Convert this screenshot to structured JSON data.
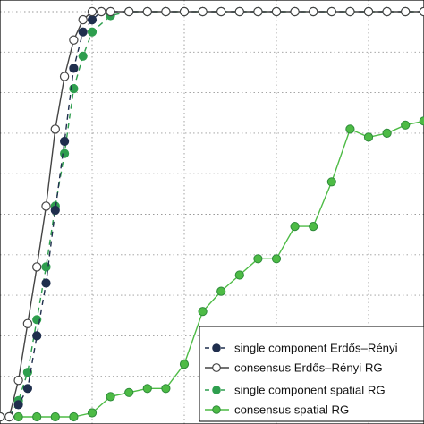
{
  "chart_data": {
    "type": "line",
    "title": "",
    "xlabel": "",
    "ylabel": "",
    "xlim": [
      0,
      23
    ],
    "ylim": [
      0,
      1.03
    ],
    "grid": true,
    "legend_position": "bottom-right",
    "series": [
      {
        "name": "single component Erdős–Rényi",
        "color": "#1f2e4d",
        "line": "dashed",
        "marker": "filled",
        "x": [
          0,
          0.5,
          1,
          1.5,
          2,
          2.5,
          3,
          3.5,
          4,
          4.5,
          5,
          5.5,
          6,
          7,
          8,
          9,
          10,
          11,
          12,
          13,
          14,
          15,
          16,
          17,
          18,
          19,
          20,
          21,
          22,
          23
        ],
        "y": [
          0.0,
          0.0,
          0.03,
          0.07,
          0.2,
          0.33,
          0.51,
          0.68,
          0.86,
          0.95,
          0.98,
          1.0,
          1.0,
          1.0,
          1.0,
          1.0,
          1.0,
          1.0,
          1.0,
          1.0,
          1.0,
          1.0,
          1.0,
          1.0,
          1.0,
          1.0,
          1.0,
          1.0,
          1.0,
          1.0
        ]
      },
      {
        "name": "consensus Erdős–Rényi RG",
        "color": "#444444",
        "line": "solid",
        "marker": "open",
        "x": [
          0,
          0.5,
          1,
          1.5,
          2,
          2.5,
          3,
          3.5,
          4,
          4.5,
          5,
          5.5,
          6,
          7,
          8,
          9,
          10,
          11,
          12,
          13,
          14,
          15,
          16,
          17,
          18,
          19,
          20,
          21,
          22,
          23
        ],
        "y": [
          0.0,
          0.0,
          0.09,
          0.23,
          0.37,
          0.52,
          0.71,
          0.84,
          0.93,
          0.98,
          1.0,
          1.0,
          1.0,
          1.0,
          1.0,
          1.0,
          1.0,
          1.0,
          1.0,
          1.0,
          1.0,
          1.0,
          1.0,
          1.0,
          1.0,
          1.0,
          1.0,
          1.0,
          1.0,
          1.0
        ]
      },
      {
        "name": "single component spatial RG",
        "color": "#2e9e4e",
        "line": "dashed",
        "marker": "filled",
        "x": [
          0,
          0.5,
          1,
          1.5,
          2,
          2.5,
          3,
          3.5,
          4,
          4.5,
          5,
          6,
          7,
          8,
          9,
          10,
          11,
          12,
          13,
          14,
          15,
          16,
          17,
          18,
          19,
          20,
          21,
          22,
          23
        ],
        "y": [
          0.0,
          0.0,
          0.04,
          0.11,
          0.24,
          0.37,
          0.52,
          0.65,
          0.81,
          0.89,
          0.95,
          0.99,
          1.0,
          1.0,
          1.0,
          1.0,
          1.0,
          1.0,
          1.0,
          1.0,
          1.0,
          1.0,
          1.0,
          1.0,
          1.0,
          1.0,
          1.0,
          1.0,
          1.0
        ]
      },
      {
        "name": "consensus spatial RG",
        "color": "#4dbb45",
        "line": "solid",
        "marker": "filled",
        "x": [
          0,
          1,
          2,
          3,
          4,
          5,
          6,
          7,
          8,
          9,
          10,
          11,
          12,
          13,
          14,
          15,
          16,
          17,
          18,
          19,
          20,
          21,
          22,
          23
        ],
        "y": [
          0.0,
          0.0,
          0.0,
          0.0,
          0.0,
          0.01,
          0.05,
          0.06,
          0.07,
          0.07,
          0.13,
          0.26,
          0.31,
          0.35,
          0.39,
          0.39,
          0.47,
          0.47,
          0.58,
          0.71,
          0.69,
          0.7,
          0.72,
          0.73
        ]
      }
    ]
  }
}
